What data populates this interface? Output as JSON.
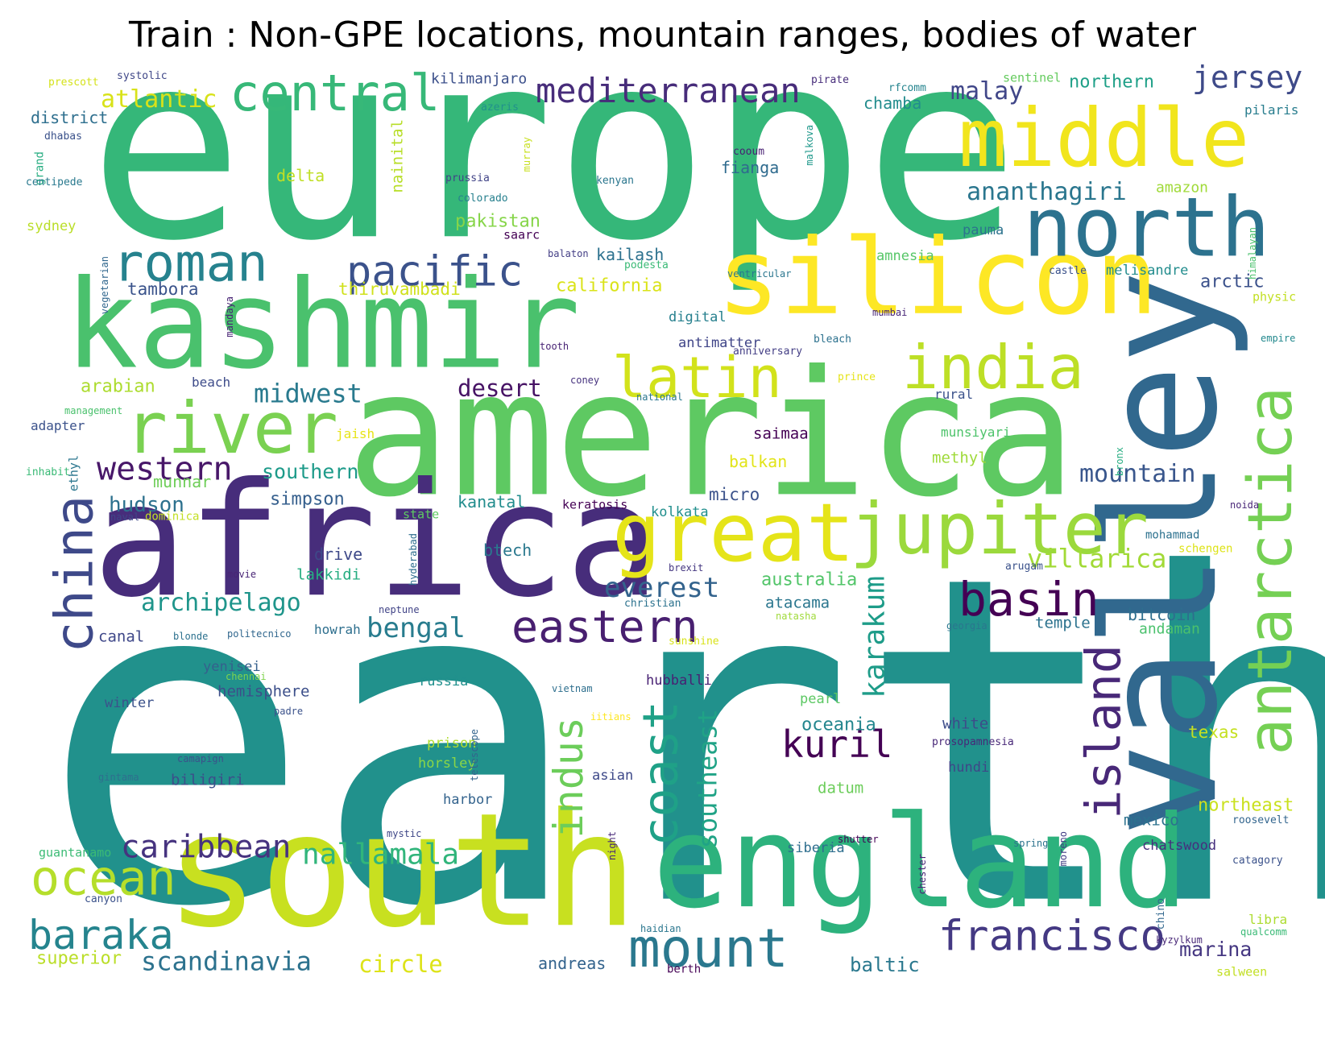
{
  "title": "Train : Non-GPE locations, mountain ranges, bodies of water",
  "palette": {
    "background": "#ffffff",
    "title": "#000000"
  },
  "words": [
    {
      "t": "earth",
      "c": "#21918c"
    },
    {
      "t": "europe",
      "c": "#35b779"
    },
    {
      "t": "america",
      "c": "#5ec962"
    },
    {
      "t": "africa",
      "c": "#472d7b"
    },
    {
      "t": "south",
      "c": "#c8e020"
    },
    {
      "t": "valley",
      "c": "#31688e"
    },
    {
      "t": "kashmir",
      "c": "#4ac16d"
    },
    {
      "t": "england",
      "c": "#2db27d"
    },
    {
      "t": "silicon",
      "c": "#fde725"
    },
    {
      "t": "middle",
      "c": "#f1e51d"
    },
    {
      "t": "north",
      "c": "#2c728e"
    },
    {
      "t": "great",
      "c": "#e5e419"
    },
    {
      "t": "jupiter",
      "c": "#9bd93c"
    },
    {
      "t": "antarctica",
      "c": "#75d054"
    },
    {
      "t": "river",
      "c": "#7ad151"
    },
    {
      "t": "china",
      "c": "#3e4989"
    },
    {
      "t": "india",
      "c": "#bddf26"
    },
    {
      "t": "latin",
      "c": "#d2e21b"
    },
    {
      "t": "roman",
      "c": "#26828e"
    },
    {
      "t": "island",
      "c": "#482878"
    },
    {
      "t": "central",
      "c": "#37b878"
    },
    {
      "t": "pacific",
      "c": "#3b528b"
    },
    {
      "t": "coast",
      "c": "#1fa187"
    },
    {
      "t": "mount",
      "c": "#2a788e"
    },
    {
      "t": "ocean",
      "c": "#b5de2b"
    },
    {
      "t": "basin",
      "c": "#440154"
    },
    {
      "t": "eastern",
      "c": "#481f70"
    },
    {
      "t": "francisco",
      "c": "#443983"
    },
    {
      "t": "baraka",
      "c": "#25848e"
    },
    {
      "t": "mediterranean",
      "c": "#472c7a"
    },
    {
      "t": "western",
      "c": "#481769"
    },
    {
      "t": "caribbean",
      "c": "#46337f"
    },
    {
      "t": "kuril",
      "c": "#440154"
    },
    {
      "t": "indus",
      "c": "#6ccd5a"
    },
    {
      "t": "jersey",
      "c": "#3e4a89"
    },
    {
      "t": "nallamala",
      "c": "#31b57b"
    },
    {
      "t": "karakum",
      "c": "#1e9c89"
    },
    {
      "t": "southeast",
      "c": "#20a386"
    },
    {
      "t": "scandinavia",
      "c": "#2c728e"
    },
    {
      "t": "archipelago",
      "c": "#1f958b"
    },
    {
      "t": "everest",
      "c": "#33638d"
    },
    {
      "t": "bengal",
      "c": "#287c8e"
    },
    {
      "t": "midwest",
      "c": "#297a8e"
    },
    {
      "t": "ananthagiri",
      "c": "#2a768e"
    },
    {
      "t": "villarica",
      "c": "#a2da37"
    },
    {
      "t": "atlantic",
      "c": "#d8e219"
    },
    {
      "t": "malay",
      "c": "#404688"
    },
    {
      "t": "mountain",
      "c": "#39568c"
    },
    {
      "t": "desert",
      "c": "#471365"
    },
    {
      "t": "superior",
      "c": "#bade28"
    },
    {
      "t": "circle",
      "c": "#dde318"
    },
    {
      "t": "hudson",
      "c": "#2d718e"
    },
    {
      "t": "northern",
      "c": "#1fa088"
    },
    {
      "t": "southern",
      "c": "#1e9b8a"
    },
    {
      "t": "pakistan",
      "c": "#86d549"
    },
    {
      "t": "marina",
      "c": "#453781"
    },
    {
      "t": "baltic",
      "c": "#2a788e"
    },
    {
      "t": "district",
      "c": "#2e6f8e"
    },
    {
      "t": "arabian",
      "c": "#addc30"
    },
    {
      "t": "balkan",
      "c": "#e2e418"
    },
    {
      "t": "california",
      "c": "#dae319"
    },
    {
      "t": "australia",
      "c": "#52c569"
    },
    {
      "t": "oceania",
      "c": "#24868e"
    },
    {
      "t": "northeast",
      "c": "#cae11f"
    },
    {
      "t": "chamba",
      "c": "#228c8d"
    },
    {
      "t": "arctic",
      "c": "#3b518b"
    },
    {
      "t": "texas",
      "c": "#c5e021"
    },
    {
      "t": "andreas",
      "c": "#33638d"
    },
    {
      "t": "kailash",
      "c": "#2c718e"
    },
    {
      "t": "thiruvambadi",
      "c": "#d0e11c"
    },
    {
      "t": "tambora",
      "c": "#3a538b"
    },
    {
      "t": "fianga",
      "c": "#2f6b8e"
    },
    {
      "t": "munnar",
      "c": "#6ece58"
    },
    {
      "t": "methyl",
      "c": "#9fda3a"
    },
    {
      "t": "kanatal",
      "c": "#228d8d"
    },
    {
      "t": "simpson",
      "c": "#355f8d"
    },
    {
      "t": "saimaa",
      "c": "#440154"
    },
    {
      "t": "drive",
      "c": "#3e4989"
    },
    {
      "t": "lakkidi",
      "c": "#26ad81"
    },
    {
      "t": "btech",
      "c": "#2a788e"
    },
    {
      "t": "temple",
      "c": "#2c728e"
    },
    {
      "t": "bitcoin",
      "c": "#2e6e8e"
    },
    {
      "t": "andaman",
      "c": "#4ac16d"
    },
    {
      "t": "atacama",
      "c": "#2a768e"
    },
    {
      "t": "canal",
      "c": "#3f4889"
    },
    {
      "t": "nainital",
      "c": "#b8de29"
    },
    {
      "t": "delta",
      "c": "#c0df25"
    },
    {
      "t": "kilimanjaro",
      "c": "#3c508b"
    },
    {
      "t": "amazon",
      "c": "#a0da39"
    },
    {
      "t": "pauma",
      "c": "#2c738e"
    },
    {
      "t": "micro",
      "c": "#3b528b"
    },
    {
      "t": "mexico",
      "c": "#2c718e"
    },
    {
      "t": "white",
      "c": "#3d4d8a"
    },
    {
      "t": "hemisphere",
      "c": "#3c4f8a"
    },
    {
      "t": "biligiri",
      "c": "#3c4f8a"
    },
    {
      "t": "datum",
      "c": "#6ccd5a"
    },
    {
      "t": "chatswood",
      "c": "#462f7e"
    },
    {
      "t": "pearl",
      "c": "#5cc863"
    },
    {
      "t": "horsley",
      "c": "#8bd646"
    },
    {
      "t": "yenisei",
      "c": "#35608d"
    },
    {
      "t": "prison",
      "c": "#b0dd2f"
    },
    {
      "t": "keratosis",
      "c": "#440154"
    },
    {
      "t": "kolkata",
      "c": "#218f8d"
    },
    {
      "t": "hubballi",
      "c": "#482173"
    },
    {
      "t": "winter",
      "c": "#3b528b"
    },
    {
      "t": "russia",
      "c": "#21908d"
    },
    {
      "t": "asian",
      "c": "#3e4989"
    },
    {
      "t": "melisandre",
      "c": "#228c8d"
    },
    {
      "t": "digital",
      "c": "#27808e"
    },
    {
      "t": "antimatter",
      "c": "#404588"
    },
    {
      "t": "amnesia",
      "c": "#56c667"
    },
    {
      "t": "harbor",
      "c": "#33638d"
    },
    {
      "t": "hundi",
      "c": "#3f4788"
    },
    {
      "t": "siberia",
      "c": "#2e6e8e"
    },
    {
      "t": "guantanamo",
      "c": "#3bbb75"
    },
    {
      "t": "sydney",
      "c": "#bade28"
    },
    {
      "t": "rural",
      "c": "#3b528b"
    },
    {
      "t": "adapter",
      "c": "#3b528b"
    },
    {
      "t": "beach",
      "c": "#3e4c8a"
    },
    {
      "t": "jaish",
      "c": "#e7e419"
    },
    {
      "t": "mumbai",
      "c": "#482677"
    },
    {
      "t": "munsiyari",
      "c": "#4ec36b"
    },
    {
      "t": "howrah",
      "c": "#2e6f8e"
    },
    {
      "t": "libra",
      "c": "#addc30"
    },
    {
      "t": "roosevelt",
      "c": "#32658e"
    },
    {
      "t": "physic",
      "c": "#c2df23"
    },
    {
      "t": "pilaris",
      "c": "#287d8e"
    },
    {
      "t": "empire",
      "c": "#23898e"
    },
    {
      "t": "saarc",
      "c": "#440154"
    },
    {
      "t": "systolic",
      "c": "#3f4788"
    },
    {
      "t": "prescott",
      "c": "#d5e21a"
    },
    {
      "t": "sentinel",
      "c": "#65cb5e"
    },
    {
      "t": "azeris",
      "c": "#21918c"
    },
    {
      "t": "pirate",
      "c": "#472d7b"
    },
    {
      "t": "rfcomm",
      "c": "#25848e"
    },
    {
      "t": "prussia",
      "c": "#414487"
    },
    {
      "t": "colorado",
      "c": "#27808e"
    },
    {
      "t": "murray",
      "c": "#c8e020"
    },
    {
      "t": "malkova",
      "c": "#1f988b"
    },
    {
      "t": "cooum",
      "c": "#482173"
    },
    {
      "t": "kenyan",
      "c": "#2a768e"
    },
    {
      "t": "dhabas",
      "c": "#3b528b"
    },
    {
      "t": "grand",
      "c": "#27ad81"
    },
    {
      "t": "centipede",
      "c": "#29798e"
    },
    {
      "t": "vegetarian",
      "c": "#31678e"
    },
    {
      "t": "mandaya",
      "c": "#482475"
    },
    {
      "t": "balaton",
      "c": "#433e85"
    },
    {
      "t": "podesta",
      "c": "#3aba76"
    },
    {
      "t": "ventricular",
      "c": "#2a768e"
    },
    {
      "t": "castle",
      "c": "#3b528b"
    },
    {
      "t": "himalayan",
      "c": "#4ac16d"
    },
    {
      "t": "tooth",
      "c": "#482475"
    },
    {
      "t": "bleach",
      "c": "#2c718e"
    },
    {
      "t": "anniversary",
      "c": "#433e85"
    },
    {
      "t": "coney",
      "c": "#46327e"
    },
    {
      "t": "prince",
      "c": "#e5e419"
    },
    {
      "t": "national",
      "c": "#2a768e"
    },
    {
      "t": "management",
      "c": "#4ac16d"
    },
    {
      "t": "ethyl",
      "c": "#2a768e"
    },
    {
      "t": "inhabit",
      "c": "#3aba76"
    },
    {
      "t": "naval",
      "c": "#3f4788"
    },
    {
      "t": "dominica",
      "c": "#c2df23"
    },
    {
      "t": "state",
      "c": "#5ec962"
    },
    {
      "t": "hyderabad",
      "c": "#2e6e8e"
    },
    {
      "t": "movie",
      "c": "#482475"
    },
    {
      "t": "brexit",
      "c": "#453781"
    },
    {
      "t": "arugam",
      "c": "#3b528b"
    },
    {
      "t": "neptune",
      "c": "#414487"
    },
    {
      "t": "christian",
      "c": "#2c728e"
    },
    {
      "t": "natasha",
      "c": "#9fda3a"
    },
    {
      "t": "blonde",
      "c": "#2c718e"
    },
    {
      "t": "politecnico",
      "c": "#31678e"
    },
    {
      "t": "sunshine",
      "c": "#d8e219"
    },
    {
      "t": "chennai",
      "c": "#7fd34e"
    },
    {
      "t": "padre",
      "c": "#3b528b"
    },
    {
      "t": "vietnam",
      "c": "#2e6f8e"
    },
    {
      "t": "iitians",
      "c": "#fde725"
    },
    {
      "t": "telescope",
      "c": "#33638d"
    },
    {
      "t": "prosopamnesia",
      "c": "#482878"
    },
    {
      "t": "camapign",
      "c": "#3b528b"
    },
    {
      "t": "gintama",
      "c": "#2e6f8e"
    },
    {
      "t": "mystic",
      "c": "#3f4788"
    },
    {
      "t": "night",
      "c": "#482878"
    },
    {
      "t": "moreno",
      "c": "#433e85"
    },
    {
      "t": "chester",
      "c": "#482475"
    },
    {
      "t": "shutter",
      "c": "#440154"
    },
    {
      "t": "spring",
      "c": "#2c738e"
    },
    {
      "t": "canyon",
      "c": "#3b528b"
    },
    {
      "t": "haidian",
      "c": "#2a768e"
    },
    {
      "t": "berth",
      "c": "#440154"
    },
    {
      "t": "chino",
      "c": "#31678e"
    },
    {
      "t": "kyzylkum",
      "c": "#482878"
    },
    {
      "t": "qualcomm",
      "c": "#3aba76"
    },
    {
      "t": "catagory",
      "c": "#3b528b"
    },
    {
      "t": "salween",
      "c": "#c2df23"
    },
    {
      "t": "schengen",
      "c": "#dde318"
    },
    {
      "t": "mohammad",
      "c": "#2c718e"
    },
    {
      "t": "noida",
      "c": "#482677"
    },
    {
      "t": "bronx",
      "c": "#27ad81"
    },
    {
      "t": "georgia",
      "c": "#2a768e"
    }
  ]
}
